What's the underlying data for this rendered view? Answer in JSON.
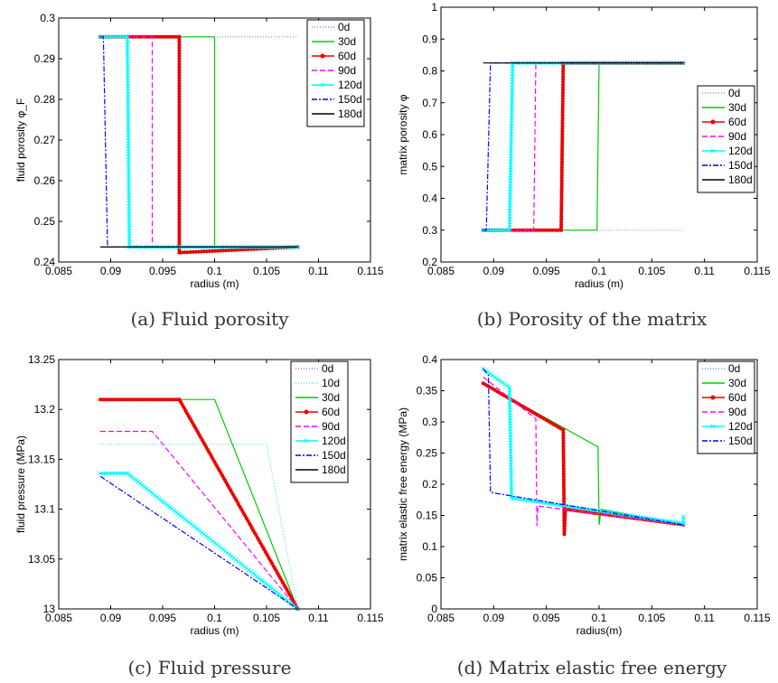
{
  "captions": [
    "(a) Fluid porosity",
    "(b) Porosity of the matrix",
    "(c) Fluid pressure",
    "(d) Matrix elastic free energy"
  ],
  "styles": {
    "0d": {
      "color": "#8888ff",
      "dash": "1,2",
      "marker": "none"
    },
    "10d": {
      "color": "#66dddd",
      "dash": "1,2",
      "marker": "none"
    },
    "30d": {
      "color": "#00cc00",
      "dash": "",
      "marker": "none"
    },
    "60d": {
      "color": "#ee0000",
      "dash": "",
      "marker": "star"
    },
    "90d": {
      "color": "#ff00ff",
      "dash": "6,3",
      "marker": "none"
    },
    "120d": {
      "color": "#00ffff",
      "dash": "",
      "marker": "x"
    },
    "150d": {
      "color": "#0000ff",
      "dash": "6,2,2,2",
      "marker": "none"
    },
    "180d": {
      "color": "#000000",
      "dash": "",
      "marker": "none"
    }
  },
  "chart_data": [
    {
      "type": "line",
      "xlabel": "radius (m)",
      "ylabel": "fluid porosity φ_F",
      "xlim": [
        0.085,
        0.115
      ],
      "ylim": [
        0.24,
        0.305
      ],
      "xticks": [
        "0.085",
        "0.09",
        "0.095",
        "0.1",
        "0.105",
        "0.11",
        "0.115"
      ],
      "yticks": [
        "0.24",
        "0.25",
        "0.26",
        "0.27",
        "0.28",
        "0.29",
        "0.3"
      ],
      "legend": [
        "0d",
        "30d",
        "60d",
        "90d",
        "120d",
        "150d",
        "180d"
      ],
      "legend_position": "top-right",
      "series": [
        {
          "name": "0d",
          "x": [
            0.089,
            0.108
          ],
          "y": [
            0.3,
            0.3
          ]
        },
        {
          "name": "30d",
          "x": [
            0.089,
            0.1,
            0.1,
            0.108
          ],
          "y": [
            0.3,
            0.3,
            0.244,
            0.244
          ]
        },
        {
          "name": "60d",
          "x": [
            0.089,
            0.0966,
            0.0966,
            0.108
          ],
          "y": [
            0.3,
            0.3,
            0.2425,
            0.244
          ]
        },
        {
          "name": "90d",
          "x": [
            0.089,
            0.094,
            0.094,
            0.108
          ],
          "y": [
            0.3,
            0.3,
            0.244,
            0.244
          ]
        },
        {
          "name": "120d",
          "x": [
            0.089,
            0.0916,
            0.0918,
            0.108
          ],
          "y": [
            0.3,
            0.3,
            0.244,
            0.244
          ]
        },
        {
          "name": "150d",
          "x": [
            0.089,
            0.0893,
            0.0897,
            0.108
          ],
          "y": [
            0.3,
            0.3,
            0.244,
            0.244
          ]
        },
        {
          "name": "180d",
          "x": [
            0.089,
            0.108
          ],
          "y": [
            0.244,
            0.244
          ]
        }
      ]
    },
    {
      "type": "line",
      "xlabel": "radius (m)",
      "ylabel": "matrix porosity φ",
      "xlim": [
        0.085,
        0.115
      ],
      "ylim": [
        0.2,
        1.0
      ],
      "xticks": [
        "0.085",
        "0.09",
        "0.095",
        "0.1",
        "0.105",
        "0.11",
        "0.115"
      ],
      "yticks": [
        "0.2",
        "0.3",
        "0.4",
        "0.5",
        "0.6",
        "0.7",
        "0.8",
        "0.9",
        "1"
      ],
      "legend": [
        "0d",
        "30d",
        "60d",
        "90d",
        "120d",
        "150d",
        "180d"
      ],
      "legend_position": "right",
      "series": [
        {
          "name": "0d",
          "x": [
            0.089,
            0.108
          ],
          "y": [
            0.3,
            0.3
          ]
        },
        {
          "name": "30d",
          "x": [
            0.089,
            0.0998,
            0.1,
            0.108
          ],
          "y": [
            0.3,
            0.3,
            0.825,
            0.825
          ]
        },
        {
          "name": "60d",
          "x": [
            0.089,
            0.0964,
            0.0966,
            0.108
          ],
          "y": [
            0.3,
            0.3,
            0.825,
            0.825
          ]
        },
        {
          "name": "90d",
          "x": [
            0.089,
            0.0938,
            0.094,
            0.108
          ],
          "y": [
            0.3,
            0.3,
            0.825,
            0.825
          ]
        },
        {
          "name": "120d",
          "x": [
            0.089,
            0.0915,
            0.0918,
            0.108
          ],
          "y": [
            0.3,
            0.3,
            0.825,
            0.825
          ]
        },
        {
          "name": "150d",
          "x": [
            0.089,
            0.0893,
            0.0897,
            0.108
          ],
          "y": [
            0.3,
            0.3,
            0.825,
            0.825
          ]
        },
        {
          "name": "180d",
          "x": [
            0.089,
            0.108
          ],
          "y": [
            0.825,
            0.825
          ]
        }
      ]
    },
    {
      "type": "line",
      "xlabel": "radius (m)",
      "ylabel": "fluid pressure (MPa)",
      "xlim": [
        0.085,
        0.115
      ],
      "ylim": [
        13.0,
        13.25
      ],
      "xticks": [
        "0.085",
        "0.09",
        "0.095",
        "0.1",
        "0.105",
        "0.11",
        "0.115"
      ],
      "yticks": [
        "13",
        "13.05",
        "13.1",
        "13.15",
        "13.2",
        "13.25"
      ],
      "legend": [
        "0d",
        "10d",
        "30d",
        "60d",
        "90d",
        "120d",
        "150d",
        "180d"
      ],
      "legend_position": "top-right",
      "series": [
        {
          "name": "0d",
          "x": [
            0.108,
            0.108
          ],
          "y": [
            13.0,
            13.0
          ]
        },
        {
          "name": "10d",
          "x": [
            0.089,
            0.105,
            0.108
          ],
          "y": [
            13.165,
            13.165,
            13.0
          ]
        },
        {
          "name": "30d",
          "x": [
            0.089,
            0.1,
            0.108
          ],
          "y": [
            13.21,
            13.21,
            13.0
          ]
        },
        {
          "name": "60d",
          "x": [
            0.089,
            0.0966,
            0.108
          ],
          "y": [
            13.21,
            13.21,
            13.0
          ]
        },
        {
          "name": "90d",
          "x": [
            0.089,
            0.094,
            0.108
          ],
          "y": [
            13.178,
            13.178,
            13.0
          ]
        },
        {
          "name": "120d",
          "x": [
            0.089,
            0.0916,
            0.108
          ],
          "y": [
            13.136,
            13.136,
            13.0
          ]
        },
        {
          "name": "150d",
          "x": [
            0.089,
            0.108
          ],
          "y": [
            13.133,
            13.0
          ]
        },
        {
          "name": "180d",
          "x": [
            0.108,
            0.108
          ],
          "y": [
            13.0,
            13.0
          ]
        }
      ]
    },
    {
      "type": "line",
      "xlabel": "radius(m)",
      "ylabel": "matrix elastic free energy (MPa)",
      "xlim": [
        0.085,
        0.115
      ],
      "ylim": [
        0.0,
        0.4
      ],
      "xticks": [
        "0.085",
        "0.09",
        "0.095",
        "0.1",
        "0.105",
        "0.11",
        "0.115"
      ],
      "yticks": [
        "0",
        "0.05",
        "0.1",
        "0.15",
        "0.2",
        "0.25",
        "0.3",
        "0.35",
        "0.4"
      ],
      "legend": [
        "0d",
        "30d",
        "60d",
        "90d",
        "120d",
        "150d"
      ],
      "legend_position": "top-right",
      "series": [
        {
          "name": "0d",
          "x": [
            0.108,
            0.108
          ],
          "y": [
            0.14,
            0.14
          ]
        },
        {
          "name": "30d",
          "x": [
            0.089,
            0.0999,
            0.1,
            0.1002,
            0.108
          ],
          "y": [
            0.362,
            0.26,
            0.135,
            0.16,
            0.135
          ]
        },
        {
          "name": "60d",
          "x": [
            0.089,
            0.0966,
            0.0967,
            0.0968,
            0.108
          ],
          "y": [
            0.362,
            0.287,
            0.12,
            0.16,
            0.135
          ]
        },
        {
          "name": "90d",
          "x": [
            0.089,
            0.094,
            0.0941,
            0.0942,
            0.108
          ],
          "y": [
            0.372,
            0.305,
            0.133,
            0.165,
            0.135
          ]
        },
        {
          "name": "120d",
          "x": [
            0.089,
            0.0915,
            0.0917,
            0.108,
            0.108
          ],
          "y": [
            0.385,
            0.355,
            0.178,
            0.137,
            0.148
          ]
        },
        {
          "name": "150d",
          "x": [
            0.089,
            0.0895,
            0.0897,
            0.108
          ],
          "y": [
            0.385,
            0.375,
            0.187,
            0.135
          ]
        }
      ]
    }
  ]
}
